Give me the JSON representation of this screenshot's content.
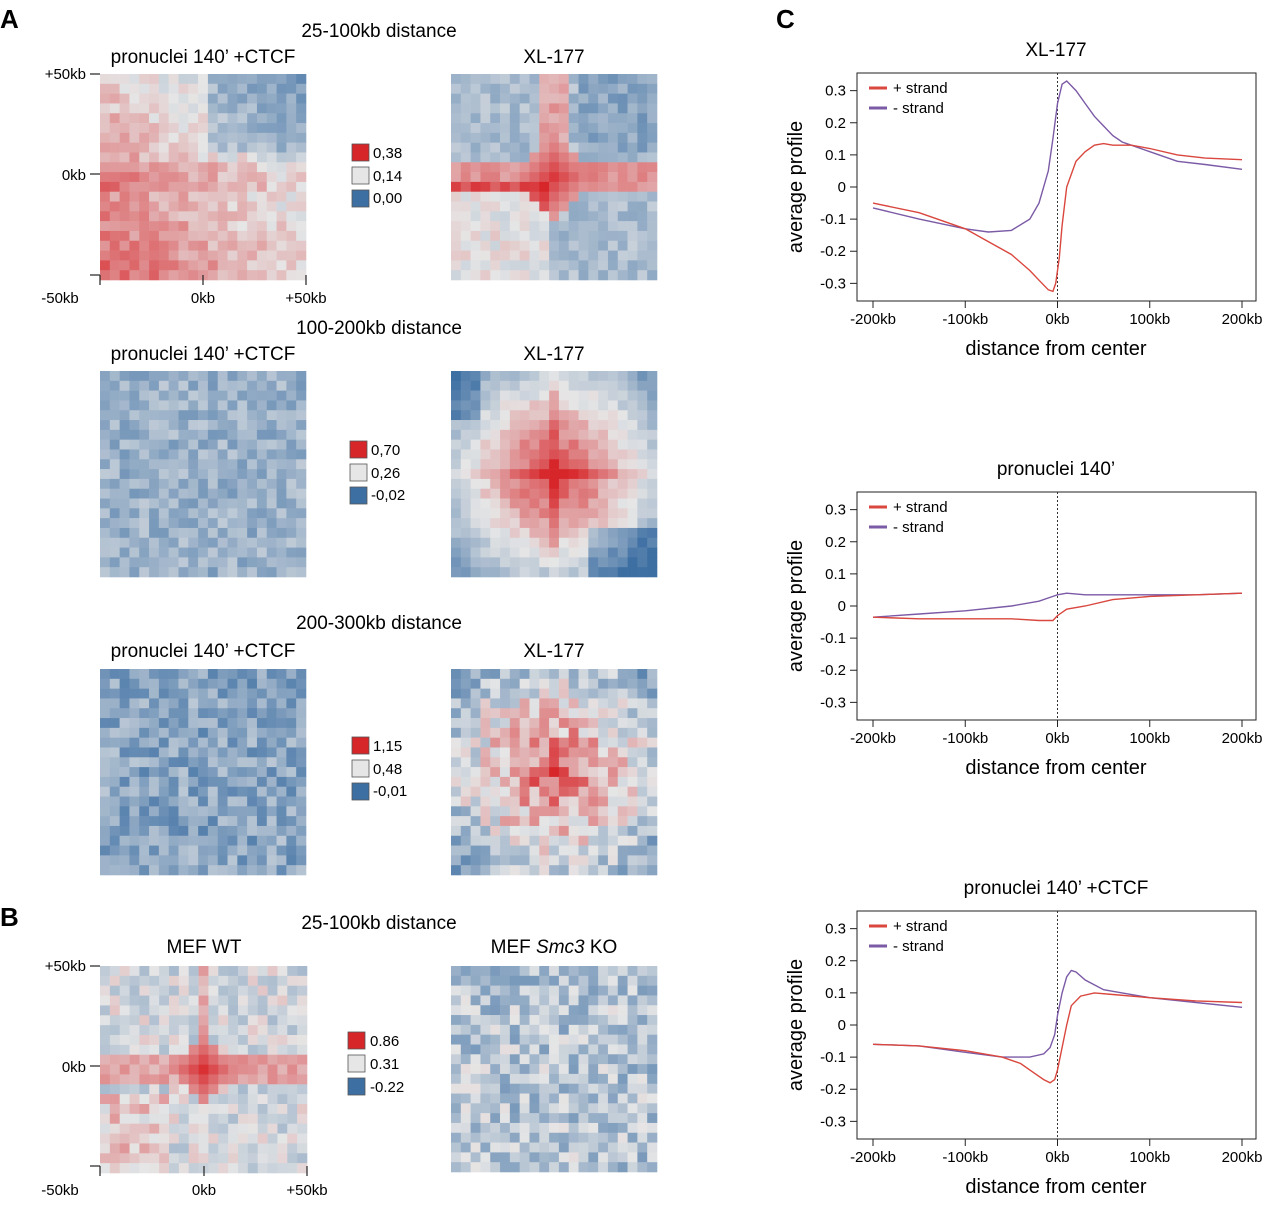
{
  "panels": {
    "A": "A",
    "B": "B",
    "C": "C"
  },
  "heatmaps": {
    "a1": {
      "heading": "25-100kb distance",
      "left_title": "pronuclei 140’ +CTCF",
      "right_title": "XL-177",
      "y_top": "+50kb",
      "y_mid": "0kb",
      "x_left": "-50kb",
      "x_mid": "0kb",
      "x_right": "+50kb",
      "legend": [
        "0,38",
        "0,14",
        "0,00"
      ]
    },
    "a2": {
      "heading": "100-200kb distance",
      "left_title": "pronuclei 140’ +CTCF",
      "right_title": "XL-177",
      "legend": [
        "0,70",
        "0,26",
        "-0,02"
      ]
    },
    "a3": {
      "heading": "200-300kb distance",
      "left_title": "pronuclei 140’ +CTCF",
      "right_title": "XL-177",
      "legend": [
        "1,15",
        "0,48",
        "-0,01"
      ]
    },
    "b": {
      "heading": "25-100kb distance",
      "left_title": "MEF WT",
      "right_title_pre": "MEF ",
      "right_title_italic": "Smc3",
      "right_title_post": " KO",
      "y_top": "+50kb",
      "y_mid": "0kb",
      "x_left": "-50kb",
      "x_mid": "0kb",
      "x_right": "+50kb",
      "legend": [
        "0.86",
        "0.31",
        "-0.22"
      ]
    }
  },
  "colors": {
    "heat_high": "#d7262a",
    "heat_mid": "#e6e6e6",
    "heat_low": "#3d6fa3",
    "plus_strand": "#d9473e",
    "minus_strand": "#7b5aa6"
  },
  "chart_data": [
    {
      "type": "line",
      "title": "XL-177",
      "xlabel": "distance from center",
      "ylabel": "average profile",
      "xlim": [
        -200,
        200
      ],
      "ylim": [
        -0.33,
        0.33
      ],
      "x_ticks": [
        "-200kb",
        "-100kb",
        "0kb",
        "100kb",
        "200kb"
      ],
      "y_ticks": [
        "0.3",
        "0.2",
        "0.1",
        "0",
        "-0.1",
        "-0.2",
        "-0.3"
      ],
      "legend": [
        "+ strand",
        "- strand"
      ],
      "series": [
        {
          "name": "+ strand",
          "x": [
            -200,
            -150,
            -100,
            -75,
            -50,
            -30,
            -20,
            -10,
            -5,
            -2,
            2,
            5,
            10,
            20,
            30,
            40,
            50,
            60,
            80,
            100,
            130,
            160,
            200
          ],
          "y": [
            -0.05,
            -0.08,
            -0.13,
            -0.17,
            -0.21,
            -0.26,
            -0.29,
            -0.32,
            -0.325,
            -0.3,
            -0.22,
            -0.12,
            0.0,
            0.08,
            0.11,
            0.13,
            0.135,
            0.13,
            0.13,
            0.12,
            0.1,
            0.09,
            0.085
          ]
        },
        {
          "name": "- strand",
          "x": [
            -200,
            -150,
            -100,
            -75,
            -50,
            -30,
            -20,
            -10,
            -5,
            0,
            5,
            10,
            20,
            30,
            40,
            50,
            60,
            70,
            80,
            100,
            130,
            160,
            200
          ],
          "y": [
            -0.065,
            -0.1,
            -0.13,
            -0.14,
            -0.135,
            -0.1,
            -0.05,
            0.05,
            0.15,
            0.26,
            0.32,
            0.33,
            0.3,
            0.26,
            0.22,
            0.19,
            0.16,
            0.14,
            0.13,
            0.11,
            0.08,
            0.07,
            0.055
          ]
        }
      ]
    },
    {
      "type": "line",
      "title": "pronuclei 140’",
      "xlabel": "distance from center",
      "ylabel": "average profile",
      "xlim": [
        -200,
        200
      ],
      "ylim": [
        -0.33,
        0.33
      ],
      "x_ticks": [
        "-200kb",
        "-100kb",
        "0kb",
        "100kb",
        "200kb"
      ],
      "y_ticks": [
        "0.3",
        "0.2",
        "0.1",
        "0",
        "-0.1",
        "-0.2",
        "-0.3"
      ],
      "legend": [
        "+ strand",
        "- strand"
      ],
      "series": [
        {
          "name": "+ strand",
          "x": [
            -200,
            -150,
            -100,
            -50,
            -20,
            -5,
            0,
            10,
            30,
            60,
            100,
            150,
            200
          ],
          "y": [
            -0.035,
            -0.04,
            -0.04,
            -0.04,
            -0.045,
            -0.045,
            -0.03,
            -0.01,
            0.0,
            0.02,
            0.03,
            0.035,
            0.04
          ]
        },
        {
          "name": "- strand",
          "x": [
            -200,
            -150,
            -100,
            -50,
            -20,
            -5,
            0,
            10,
            30,
            60,
            100,
            150,
            200
          ],
          "y": [
            -0.035,
            -0.025,
            -0.015,
            0.0,
            0.015,
            0.03,
            0.035,
            0.04,
            0.035,
            0.035,
            0.035,
            0.035,
            0.04
          ]
        }
      ]
    },
    {
      "type": "line",
      "title": "pronuclei 140’ +CTCF",
      "xlabel": "distance from center",
      "ylabel": "average profile",
      "xlim": [
        -200,
        200
      ],
      "ylim": [
        -0.33,
        0.33
      ],
      "x_ticks": [
        "-200kb",
        "-100kb",
        "0kb",
        "100kb",
        "200kb"
      ],
      "y_ticks": [
        "0.3",
        "0.2",
        "0.1",
        "0",
        "-0.1",
        "-0.2",
        "-0.3"
      ],
      "legend": [
        "+ strand",
        "- strand"
      ],
      "series": [
        {
          "name": "+ strand",
          "x": [
            -200,
            -150,
            -100,
            -60,
            -40,
            -25,
            -15,
            -8,
            -3,
            0,
            5,
            10,
            15,
            25,
            40,
            60,
            100,
            150,
            200
          ],
          "y": [
            -0.06,
            -0.065,
            -0.08,
            -0.1,
            -0.12,
            -0.15,
            -0.17,
            -0.18,
            -0.17,
            -0.14,
            -0.07,
            0.0,
            0.06,
            0.09,
            0.1,
            0.095,
            0.085,
            0.075,
            0.07
          ]
        },
        {
          "name": "- strand",
          "x": [
            -200,
            -150,
            -100,
            -60,
            -30,
            -15,
            -8,
            -3,
            0,
            5,
            10,
            15,
            20,
            30,
            50,
            70,
            100,
            150,
            200
          ],
          "y": [
            -0.06,
            -0.065,
            -0.085,
            -0.1,
            -0.1,
            -0.09,
            -0.07,
            -0.03,
            0.03,
            0.1,
            0.15,
            0.17,
            0.165,
            0.14,
            0.11,
            0.1,
            0.085,
            0.07,
            0.055
          ]
        }
      ]
    }
  ]
}
